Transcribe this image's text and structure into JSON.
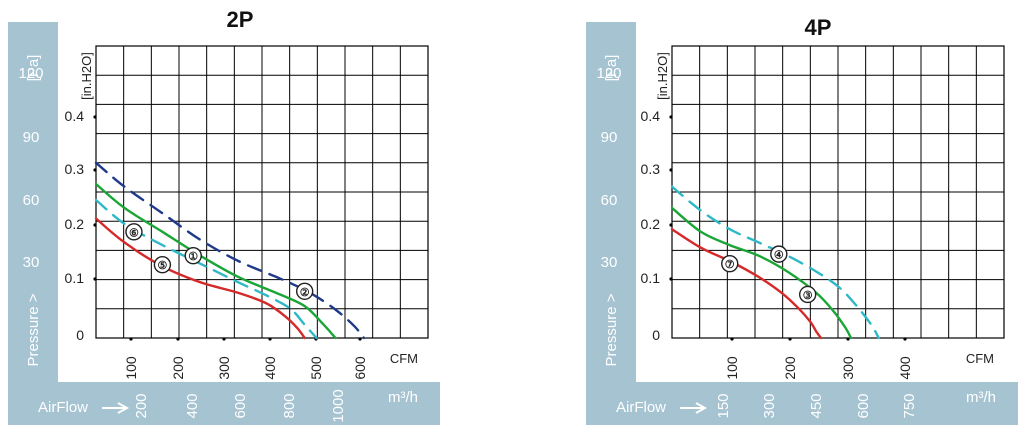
{
  "colors": {
    "band": "#a6c3d2",
    "curve_1": "#1aa636",
    "curve_2": "#1f3a8a",
    "curve_3": "#1aa636",
    "curve_4": "#2fb8c6",
    "curve_5": "#d42a2a",
    "curve_6": "#2fb8c6",
    "curve_7": "#d42a2a"
  },
  "chart_data": [
    {
      "type": "line",
      "title": "2P",
      "ylabel": "Pressure >",
      "y_unit_left": "[Pa]",
      "y_unit_inner": "[in.H2O]",
      "pa_ticks": [
        "120",
        "90",
        "60",
        "30"
      ],
      "inh2o_ticks": [
        "0.4",
        "0.3",
        "0.2",
        "0.1",
        "0"
      ],
      "cfm_ticks": [
        "100",
        "200",
        "300",
        "400",
        "500",
        "600"
      ],
      "cfm_unit": "CFM",
      "airflow_label": "AirFlow",
      "m3h_ticks": [
        "200",
        "400",
        "600",
        "800",
        "1000"
      ],
      "m3h_unit": "m³/h",
      "xlim": [
        0,
        700
      ],
      "ylim": [
        0,
        0.55
      ],
      "series": [
        {
          "name": "①",
          "style": "solid",
          "color_key": "curve_1",
          "x": [
            0,
            60,
            140,
            220,
            300,
            380,
            440,
            480,
            505
          ],
          "y": [
            0.29,
            0.245,
            0.2,
            0.155,
            0.115,
            0.085,
            0.06,
            0.025,
            0
          ]
        },
        {
          "name": "②",
          "style": "dashed",
          "color_key": "curve_2",
          "x": [
            0,
            60,
            140,
            220,
            300,
            380,
            430,
            470,
            510,
            545,
            565
          ],
          "y": [
            0.33,
            0.285,
            0.235,
            0.185,
            0.145,
            0.115,
            0.095,
            0.075,
            0.05,
            0.022,
            0
          ]
        },
        {
          "name": "⑤",
          "style": "solid",
          "color_key": "curve_5",
          "x": [
            0,
            60,
            140,
            220,
            300,
            360,
            400,
            425,
            440
          ],
          "y": [
            0.225,
            0.18,
            0.135,
            0.105,
            0.085,
            0.065,
            0.04,
            0.018,
            0
          ]
        },
        {
          "name": "⑥",
          "style": "dashed",
          "color_key": "curve_6",
          "x": [
            0,
            60,
            140,
            220,
            300,
            360,
            410,
            440,
            465
          ],
          "y": [
            0.26,
            0.215,
            0.175,
            0.14,
            0.105,
            0.08,
            0.055,
            0.025,
            0
          ]
        }
      ],
      "labels": [
        {
          "text": "①",
          "x": 205,
          "y": 0.155
        },
        {
          "text": "②",
          "x": 440,
          "y": 0.088
        },
        {
          "text": "⑤",
          "x": 140,
          "y": 0.138
        },
        {
          "text": "⑥",
          "x": 80,
          "y": 0.2
        }
      ]
    },
    {
      "type": "line",
      "title": "4P",
      "ylabel": "Pressure >",
      "y_unit_left": "[Pa]",
      "y_unit_inner": "[in.H2O]",
      "pa_ticks": [
        "120",
        "90",
        "60",
        "30"
      ],
      "inh2o_ticks": [
        "0.4",
        "0.3",
        "0.2",
        "0.1",
        "0"
      ],
      "cfm_ticks": [
        "100",
        "200",
        "300",
        "400"
      ],
      "cfm_unit": "CFM",
      "airflow_label": "AirFlow",
      "m3h_ticks": [
        "150",
        "300",
        "450",
        "600",
        "750"
      ],
      "m3h_unit": "m³/h",
      "xlim": [
        0,
        575
      ],
      "ylim": [
        0,
        0.55
      ],
      "series": [
        {
          "name": "③",
          "style": "solid",
          "color_key": "curve_3",
          "x": [
            0,
            50,
            100,
            150,
            200,
            250,
            280,
            300,
            310
          ],
          "y": [
            0.245,
            0.2,
            0.175,
            0.155,
            0.125,
            0.085,
            0.05,
            0.02,
            0
          ]
        },
        {
          "name": "④",
          "style": "dashed",
          "color_key": "curve_4",
          "x": [
            0,
            50,
            100,
            150,
            200,
            250,
            290,
            320,
            345,
            358
          ],
          "y": [
            0.285,
            0.24,
            0.205,
            0.18,
            0.155,
            0.125,
            0.095,
            0.06,
            0.025,
            0
          ]
        },
        {
          "name": "⑦",
          "style": "solid",
          "color_key": "curve_7",
          "x": [
            0,
            50,
            100,
            150,
            190,
            220,
            240,
            250,
            258
          ],
          "y": [
            0.205,
            0.17,
            0.145,
            0.115,
            0.085,
            0.055,
            0.03,
            0.012,
            0
          ]
        }
      ],
      "labels": [
        {
          "text": "④",
          "x": 185,
          "y": 0.158
        },
        {
          "text": "③",
          "x": 235,
          "y": 0.082
        },
        {
          "text": "⑦",
          "x": 100,
          "y": 0.14
        }
      ]
    }
  ]
}
